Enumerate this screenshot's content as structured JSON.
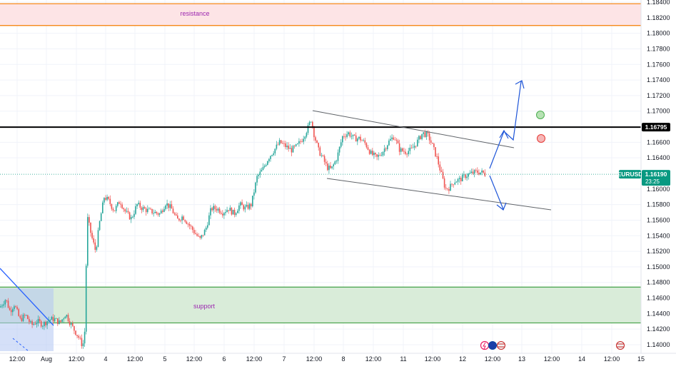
{
  "chart_data": {
    "type": "candlestick",
    "symbol": "EURUSD",
    "last_price": "1.16190",
    "countdown": "23:25",
    "key_level": "1.16795",
    "y_ticks": [
      "1.18400",
      "1.18200",
      "1.18000",
      "1.17800",
      "1.17600",
      "1.17400",
      "1.17200",
      "1.17000",
      "1.16800",
      "1.16600",
      "1.16400",
      "1.16000",
      "1.15800",
      "1.15600",
      "1.15400",
      "1.15200",
      "1.15000",
      "1.14800",
      "1.14600",
      "1.14400",
      "1.14200",
      "1.14000"
    ],
    "x_ticks": [
      "12:00",
      "Aug",
      "12:00",
      "4",
      "12:00",
      "5",
      "12:00",
      "6",
      "12:00",
      "7",
      "12:00",
      "8",
      "12:00",
      "11",
      "12:00",
      "12",
      "12:00",
      "13",
      "12:00",
      "14",
      "12:00",
      "15"
    ],
    "ylim": [
      1.1392,
      1.1845
    ],
    "zones": [
      {
        "label": "resistance",
        "from": 1.181,
        "to": 1.1838
      },
      {
        "label": "support",
        "from": 1.1428,
        "to": 1.1474
      }
    ],
    "ohlc_keypoints": [
      [
        0,
        1.1448
      ],
      [
        8,
        1.1459
      ],
      [
        14,
        1.1443
      ],
      [
        20,
        1.1452
      ],
      [
        28,
        1.1432
      ],
      [
        36,
        1.1438
      ],
      [
        44,
        1.1425
      ],
      [
        52,
        1.143
      ],
      [
        60,
        1.1426
      ],
      [
        68,
        1.1432
      ],
      [
        76,
        1.1433
      ],
      [
        84,
        1.1428
      ],
      [
        92,
        1.144
      ],
      [
        100,
        1.1425
      ],
      [
        110,
        1.141
      ],
      [
        116,
        1.1398
      ],
      [
        119,
        1.142
      ],
      [
        122,
        1.1565
      ],
      [
        128,
        1.154
      ],
      [
        134,
        1.152
      ],
      [
        140,
        1.156
      ],
      [
        146,
        1.159
      ],
      [
        152,
        1.1585
      ],
      [
        160,
        1.1572
      ],
      [
        168,
        1.1585
      ],
      [
        176,
        1.157
      ],
      [
        184,
        1.1562
      ],
      [
        192,
        1.158
      ],
      [
        200,
        1.1575
      ],
      [
        208,
        1.1572
      ],
      [
        216,
        1.157
      ],
      [
        224,
        1.1568
      ],
      [
        232,
        1.1582
      ],
      [
        240,
        1.1575
      ],
      [
        248,
        1.156
      ],
      [
        256,
        1.1565
      ],
      [
        264,
        1.1555
      ],
      [
        272,
        1.1545
      ],
      [
        280,
        1.1535
      ],
      [
        288,
        1.1548
      ],
      [
        296,
        1.1575
      ],
      [
        304,
        1.1575
      ],
      [
        312,
        1.157
      ],
      [
        320,
        1.1575
      ],
      [
        328,
        1.1568
      ],
      [
        336,
        1.158
      ],
      [
        344,
        1.1575
      ],
      [
        352,
        1.158
      ],
      [
        360,
        1.1615
      ],
      [
        368,
        1.1625
      ],
      [
        376,
        1.164
      ],
      [
        384,
        1.165
      ],
      [
        392,
        1.166
      ],
      [
        400,
        1.1655
      ],
      [
        408,
        1.165
      ],
      [
        416,
        1.1655
      ],
      [
        424,
        1.1665
      ],
      [
        432,
        1.168
      ],
      [
        436,
        1.169
      ],
      [
        440,
        1.167
      ],
      [
        446,
        1.165
      ],
      [
        452,
        1.164
      ],
      [
        458,
        1.1628
      ],
      [
        464,
        1.1625
      ],
      [
        472,
        1.164
      ],
      [
        480,
        1.1668
      ],
      [
        488,
        1.1672
      ],
      [
        496,
        1.1665
      ],
      [
        504,
        1.1665
      ],
      [
        512,
        1.1658
      ],
      [
        520,
        1.1645
      ],
      [
        528,
        1.164
      ],
      [
        536,
        1.1648
      ],
      [
        544,
        1.166
      ],
      [
        552,
        1.1668
      ],
      [
        560,
        1.165
      ],
      [
        568,
        1.1648
      ],
      [
        576,
        1.165
      ],
      [
        584,
        1.166
      ],
      [
        592,
        1.1672
      ],
      [
        600,
        1.1668
      ],
      [
        606,
        1.1655
      ],
      [
        612,
        1.164
      ],
      [
        618,
        1.162
      ],
      [
        624,
        1.16
      ],
      [
        630,
        1.1602
      ],
      [
        636,
        1.161
      ],
      [
        644,
        1.1612
      ],
      [
        652,
        1.1617
      ],
      [
        660,
        1.162
      ],
      [
        668,
        1.1622
      ],
      [
        676,
        1.1621
      ],
      [
        680,
        1.1619
      ]
    ]
  },
  "zone_labels": {
    "resistance": "resistance",
    "support": "support"
  },
  "price_tags": {
    "key_level": "1.16795",
    "symbol": "EURUSD",
    "price": "1.16190",
    "countdown": "23:25"
  },
  "colors": {
    "resistance_fill": "#fde4e6",
    "resistance_border": "#f57c00",
    "support_fill": "#d9ecd9",
    "support_border": "#43a047",
    "bull": "#26a69a",
    "bear": "#ef5350",
    "key_line": "#000000",
    "tag_green": "#089981",
    "arrow": "#1e55d8",
    "zone_text": "#9c27b0",
    "downtrend": "#2962ff"
  },
  "event_icons": [
    "flash-icon",
    "eu-flag-icon",
    "us-flag-icon",
    "us-flag-icon"
  ]
}
